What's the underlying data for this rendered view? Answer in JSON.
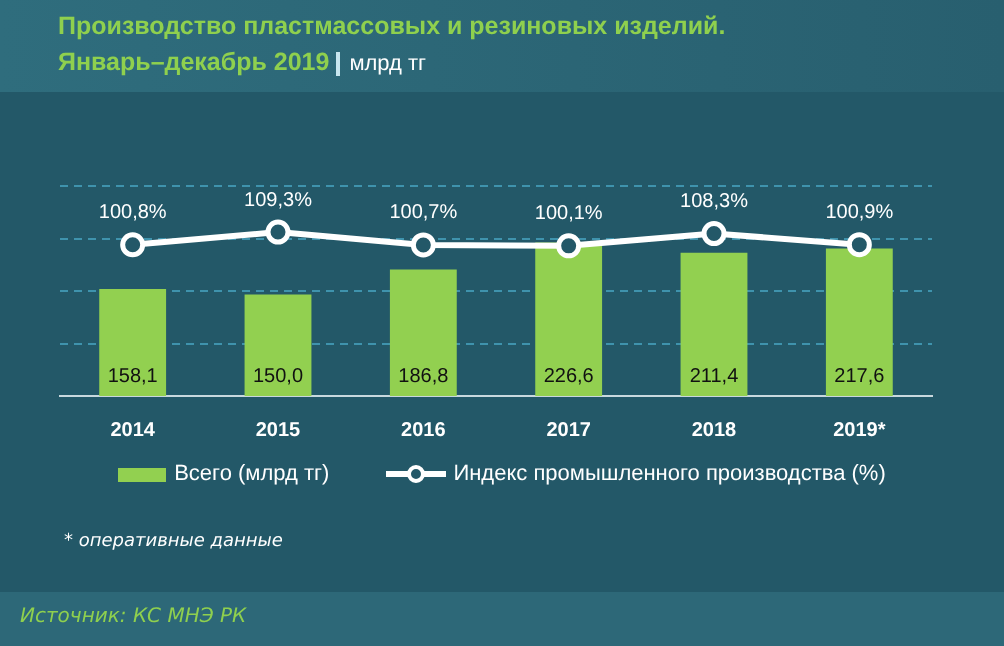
{
  "chart_data": {
    "type": "bar",
    "title": "Производство пластмассовых и резиновых изделий. Январь–декабрь 2019",
    "subtitle": "млрд тг",
    "categories": [
      "2014",
      "2015",
      "2016",
      "2017",
      "2018",
      "2019*"
    ],
    "series": [
      {
        "name": "Всего (млрд тг)",
        "type": "bar",
        "color": "#92d050",
        "values": [
          158.1,
          150.0,
          186.8,
          226.6,
          211.4,
          217.6
        ],
        "value_labels": [
          "158,1",
          "150,0",
          "186,8",
          "226,6",
          "211,4",
          "217,6"
        ]
      },
      {
        "name": "Индекс промышленного производства (%)",
        "type": "line",
        "axis": "y2",
        "color": "#ffffff",
        "marker": "circle",
        "values": [
          100.8,
          109.3,
          100.7,
          100.1,
          108.3,
          100.9
        ],
        "value_labels": [
          "100,8%",
          "109,3%",
          "100,7%",
          "100,1%",
          "108,3%",
          "100,9%"
        ]
      }
    ],
    "ylim": [
      0,
      310
    ],
    "yticks": [
      {
        "value": 77.5,
        "label": null
      },
      {
        "value": 155,
        "label": null
      },
      {
        "value": 232.5,
        "label": null
      },
      {
        "value": 310,
        "label": null
      }
    ],
    "grid": "y",
    "legend": "bottom",
    "tick_labels": "x",
    "annotations": [
      "* оперативные данные",
      "Источник: КС МНЭ РК"
    ]
  }
}
